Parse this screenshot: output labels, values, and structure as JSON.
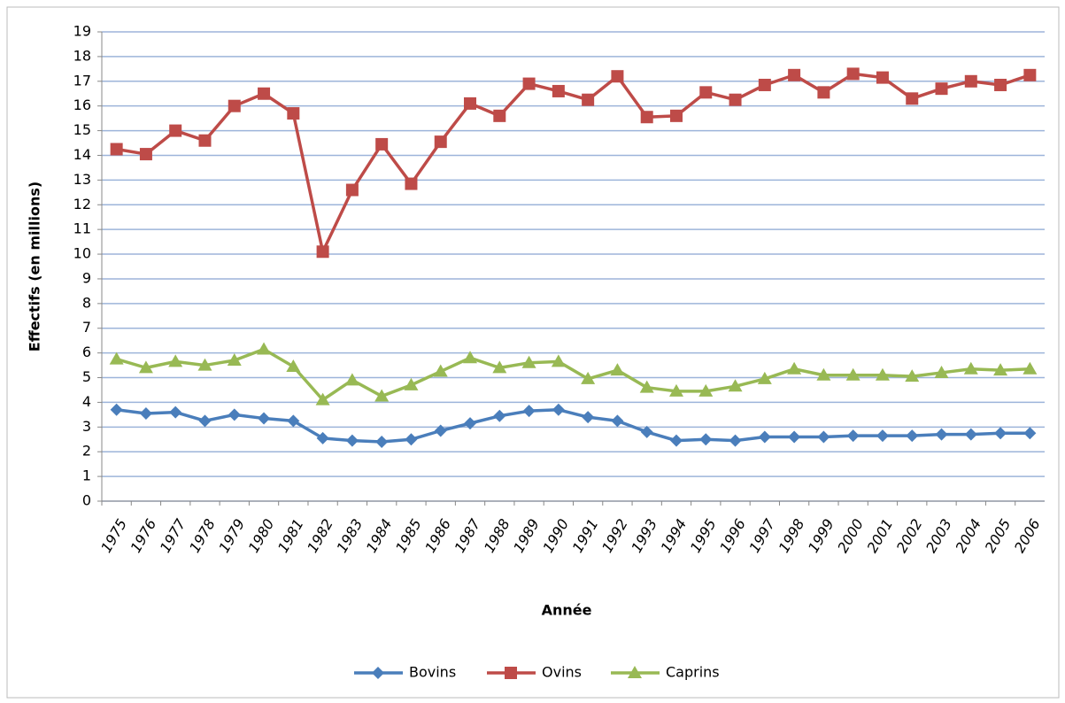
{
  "chart_data": {
    "type": "line",
    "y_label": "Effectifs (en millions)",
    "x_label": "Année",
    "categories": [
      "1975",
      "1976",
      "1977",
      "1978",
      "1979",
      "1980",
      "1981",
      "1982",
      "1983",
      "1984",
      "1985",
      "1986",
      "1987",
      "1988",
      "1989",
      "1990",
      "1991",
      "1992",
      "1993",
      "1994",
      "1995",
      "1996",
      "1997",
      "1998",
      "1999",
      "2000",
      "2001",
      "2002",
      "2003",
      "2004",
      "2005",
      "2006"
    ],
    "series": [
      {
        "name": "Bovins",
        "color": "#4a7ebb",
        "marker": "diamond",
        "values": [
          3.7,
          3.55,
          3.6,
          3.25,
          3.5,
          3.35,
          3.25,
          2.55,
          2.45,
          2.4,
          2.5,
          2.85,
          3.15,
          3.45,
          3.65,
          3.7,
          3.4,
          3.25,
          2.8,
          2.45,
          2.5,
          2.45,
          2.6,
          2.6,
          2.6,
          2.65,
          2.65,
          2.65,
          2.7,
          2.7,
          2.75,
          2.75
        ]
      },
      {
        "name": "Ovins",
        "color": "#be4b48",
        "marker": "square",
        "values": [
          14.25,
          14.05,
          15.0,
          14.6,
          16.0,
          16.5,
          15.7,
          10.1,
          12.6,
          14.45,
          12.85,
          14.55,
          16.1,
          15.6,
          16.9,
          16.6,
          16.25,
          17.2,
          15.55,
          15.6,
          16.55,
          16.25,
          16.85,
          17.25,
          16.55,
          17.3,
          17.15,
          16.3,
          16.7,
          17.0,
          16.85,
          17.25
        ]
      },
      {
        "name": "Caprins",
        "color": "#98b954",
        "marker": "triangle",
        "values": [
          5.75,
          5.4,
          5.65,
          5.5,
          5.7,
          6.15,
          5.45,
          4.1,
          4.9,
          4.25,
          4.7,
          5.25,
          5.8,
          5.4,
          5.6,
          5.65,
          4.95,
          5.3,
          4.6,
          4.45,
          4.45,
          4.65,
          4.95,
          5.35,
          5.1,
          5.1,
          5.1,
          5.05,
          5.2,
          5.35,
          5.3,
          5.35
        ]
      }
    ],
    "ylim": [
      0,
      19
    ],
    "yticks": [
      0,
      1,
      2,
      3,
      4,
      5,
      6,
      7,
      8,
      9,
      10,
      11,
      12,
      13,
      14,
      15,
      16,
      17,
      18,
      19
    ],
    "grid": true,
    "legend": "bottom"
  }
}
